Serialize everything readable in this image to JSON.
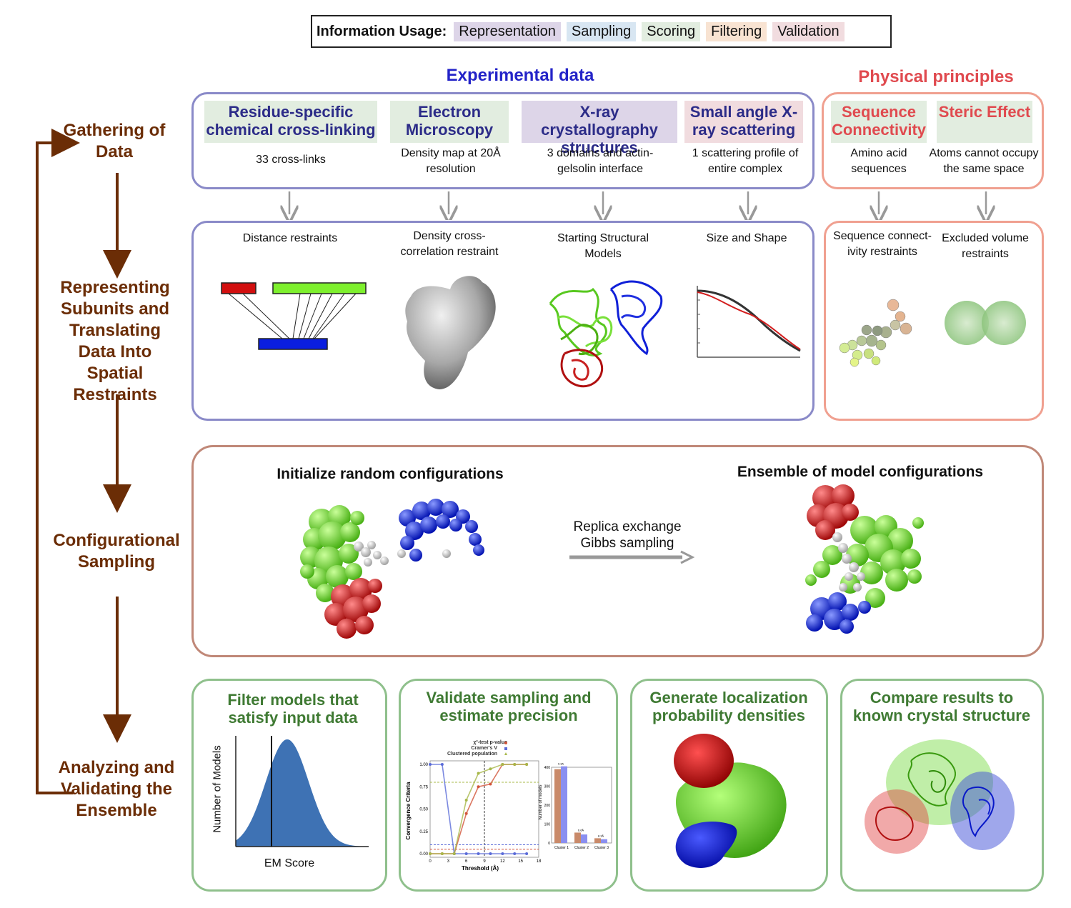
{
  "legend": {
    "label": "Information Usage:",
    "items": [
      {
        "label": "Representation",
        "color": "#ddd5e8"
      },
      {
        "label": "Sampling",
        "color": "#d8e6f2"
      },
      {
        "label": "Scoring",
        "color": "#e2ede0"
      },
      {
        "label": "Filtering",
        "color": "#f8e3d2"
      },
      {
        "label": "Validation",
        "color": "#f1dcdf"
      }
    ]
  },
  "stages": [
    "Gathering of Data",
    "Representing Subunits and Translating Data Into Spatial Restraints",
    "Configurational Sampling",
    "Analyzing and Validating the Ensemble"
  ],
  "experimental": {
    "title": "Experimental data",
    "columns": [
      {
        "header": "Residue-specific chemical cross-linking",
        "desc": "33 cross-links",
        "restraint": "Distance restraints"
      },
      {
        "header": "Electron Microscopy",
        "desc": "Density map at 20Å resolution",
        "restraint": "Density cross-correlation restraint"
      },
      {
        "header": "X-ray crystallography structures",
        "desc": "3 domains and actin-gelsolin interface",
        "restraint": "Starting Structural Models"
      },
      {
        "header": "Small angle X-ray scattering",
        "desc": "1 scattering profile of entire complex",
        "restraint": "Size and Shape"
      }
    ]
  },
  "physical": {
    "title": "Physical principles",
    "columns": [
      {
        "header": "Sequence Connectivity",
        "desc": "Amino acid sequences",
        "restraint": "Sequence connect-ivity restraints"
      },
      {
        "header": "Steric Effect",
        "desc": "Atoms cannot occupy the same space",
        "restraint": "Excluded volume restraints"
      }
    ]
  },
  "sampling": {
    "left_title": "Initialize random configurations",
    "arrow_label": "Replica exchange Gibbs sampling",
    "right_title": "Ensemble of model configurations"
  },
  "analysis": [
    {
      "title": "Filter models that satisfy input data",
      "ylabel": "Number of Models",
      "xlabel": "EM Score"
    },
    {
      "title": "Validate sampling and estimate precision"
    },
    {
      "title": "Generate localization probability densities"
    },
    {
      "title": "Compare results to known crystal structure"
    }
  ],
  "chart_data": [
    {
      "type": "line",
      "title": "",
      "xlabel": "Threshold (Å)",
      "ylabel": "Convergence Criteria",
      "xlim": [
        0,
        18
      ],
      "ylim": [
        0,
        1
      ],
      "xticks": [
        0,
        3,
        6,
        9,
        12,
        15,
        18
      ],
      "yticks": [
        0.0,
        0.25,
        0.5,
        0.75,
        1.0
      ],
      "legend": "top",
      "series": [
        {
          "name": "χ²-test p-value",
          "color": "#d2553a",
          "x": [
            0,
            2,
            4,
            6,
            8,
            10,
            12,
            14,
            16
          ],
          "y": [
            0,
            0,
            0,
            0.45,
            0.75,
            0.78,
            1.0,
            1.0,
            1.0
          ]
        },
        {
          "name": "Cramer's V",
          "color": "#5a6bd8",
          "x": [
            0,
            2,
            4,
            6,
            8,
            10,
            12,
            14,
            16
          ],
          "y": [
            1.0,
            1.0,
            0,
            0,
            0,
            0,
            0,
            0,
            0
          ]
        },
        {
          "name": "Clustered population",
          "color": "#a8b84a",
          "x": [
            0,
            2,
            4,
            6,
            8,
            10,
            12,
            14,
            16
          ],
          "y": [
            0,
            0,
            0,
            0.6,
            0.9,
            0.95,
            1.0,
            1.0,
            1.0
          ]
        }
      ]
    },
    {
      "type": "bar",
      "title": "",
      "xlabel": "",
      "ylabel": "Number of models",
      "ylim": [
        0,
        400
      ],
      "yticks": [
        0,
        100,
        200,
        300,
        400
      ],
      "categories": [
        "Cluster 1",
        "Cluster 2",
        "Cluster 3"
      ],
      "annotations": [
        "9.3Å",
        "6.6Å",
        "8.3Å"
      ],
      "series": [
        {
          "color": "#c98a6a",
          "values": [
            390,
            55,
            25
          ]
        },
        {
          "color": "#8a8ff0",
          "values": [
            405,
            45,
            20
          ]
        }
      ]
    }
  ]
}
